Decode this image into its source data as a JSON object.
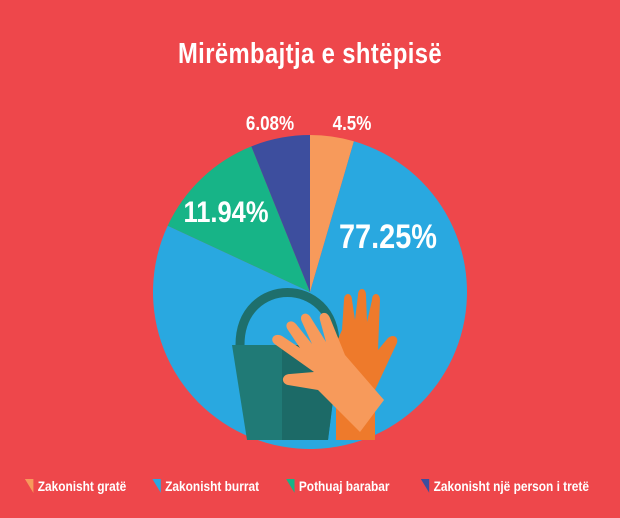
{
  "chart_data": {
    "type": "pie",
    "title": "Mirëmbajtja e shtëpisë",
    "start": "top",
    "direction": "clockwise",
    "slices": [
      {
        "name": "Zakonisht gratë",
        "value": 4.5,
        "label": "4.5%",
        "color": "#F79A5B"
      },
      {
        "name": "Zakonisht burrat",
        "value": 77.25,
        "label": "77.25%",
        "color": "#29A8E0"
      },
      {
        "name": "Pothuaj barabar",
        "value": 11.94,
        "label": "11.94%",
        "color": "#17B487"
      },
      {
        "name": "Zakonisht një person i tretë",
        "value": 6.08,
        "label": "6.08%",
        "color": "#3D4E9E"
      }
    ],
    "legend": "bottom"
  },
  "colors": {
    "background": "#EE474B"
  },
  "illustration": [
    "bucket-icon",
    "glove-icon"
  ]
}
